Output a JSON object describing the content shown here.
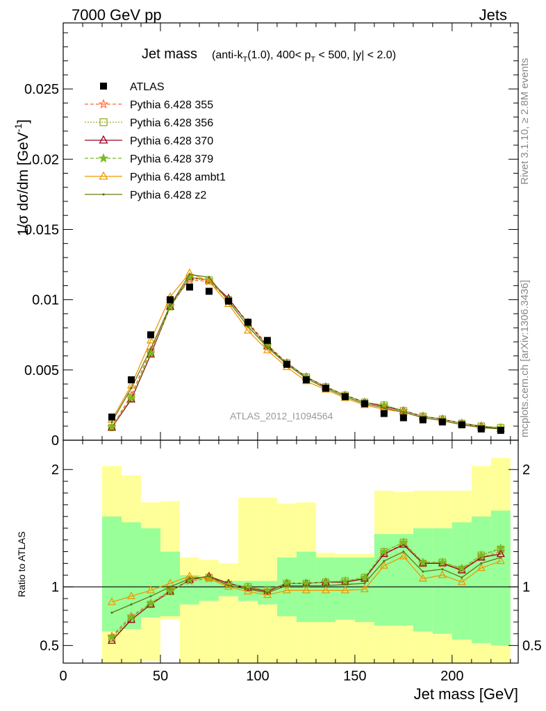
{
  "header": {
    "left": "7000 GeV pp",
    "right": "Jets"
  },
  "side_labels": {
    "rivet": "Rivet 3.1.10, ≥ 2.8M events",
    "mcplots": "mcplots.cern.ch [arXiv:1306.3436]"
  },
  "watermark": "ATLAS_2012_I1094564",
  "chart_data": [
    {
      "type": "line",
      "title_main": "Jet mass",
      "title_sub_pre": "(anti-k",
      "title_sub_idx1": "T",
      "title_sub_mid": "(1.0), 400< p",
      "title_sub_idx2": "T",
      "title_sub_post": " < 500, |y| < 2.0)",
      "ylabel": "1/σ dσ/dm [GeV",
      "ylabel_exp": "-1",
      "ylabel_close": "]",
      "xlim": [
        0,
        234
      ],
      "ylim": [
        0,
        0.0297
      ],
      "y_ticks": [
        0,
        0.005,
        0.01,
        0.015,
        0.02,
        0.025
      ],
      "y_tick_labels": [
        "0",
        "0.005",
        "0.01",
        "0.015",
        "0.02",
        "0.025"
      ],
      "x": [
        25,
        35,
        45,
        55,
        65,
        75,
        85,
        95,
        105,
        115,
        125,
        135,
        145,
        155,
        165,
        175,
        185,
        195,
        205,
        215,
        225
      ],
      "data": {
        "name": "ATLAS",
        "values": [
          0.00165,
          0.0043,
          0.0075,
          0.01,
          0.0109,
          0.0106,
          0.0099,
          0.0084,
          0.0071,
          0.0054,
          0.0043,
          0.0037,
          0.0031,
          0.0026,
          0.0019,
          0.0016,
          0.00145,
          0.0013,
          0.0011,
          0.0008,
          0.0007
        ]
      },
      "series": [
        {
          "name": "Pythia 6.428 355",
          "color": "#ff6633",
          "dash": "5,3",
          "marker": "star",
          "values": [
            0.00095,
            0.0032,
            0.0064,
            0.0096,
            0.0114,
            0.0113,
            0.01,
            0.0084,
            0.0068,
            0.0055,
            0.0045,
            0.0038,
            0.0032,
            0.0027,
            0.0024,
            0.0021,
            0.0017,
            0.0015,
            0.0012,
            0.00095,
            0.0008
          ]
        },
        {
          "name": "Pythia 6.428 356",
          "color": "#99aa22",
          "dash": "2,2",
          "marker": "square-open",
          "values": [
            0.0009,
            0.003,
            0.0062,
            0.0095,
            0.0115,
            0.0114,
            0.01,
            0.0083,
            0.0067,
            0.0055,
            0.0045,
            0.0038,
            0.0032,
            0.0027,
            0.0025,
            0.0021,
            0.0017,
            0.0015,
            0.0012,
            0.001,
            0.0009
          ]
        },
        {
          "name": "Pythia 6.428 370",
          "color": "#990022",
          "dash": "",
          "marker": "triangle-open",
          "values": [
            0.0009,
            0.0029,
            0.0061,
            0.0095,
            0.0116,
            0.0114,
            0.0101,
            0.0083,
            0.0067,
            0.0055,
            0.0045,
            0.0038,
            0.0032,
            0.0027,
            0.0024,
            0.0021,
            0.0017,
            0.0015,
            0.0012,
            0.001,
            0.0008
          ]
        },
        {
          "name": "Pythia 6.428 379",
          "color": "#77bb22",
          "dash": "5,3",
          "marker": "star-filled",
          "values": [
            0.00095,
            0.003,
            0.0062,
            0.0095,
            0.0116,
            0.0114,
            0.01,
            0.0083,
            0.0067,
            0.0055,
            0.0045,
            0.0038,
            0.0032,
            0.0027,
            0.0025,
            0.0021,
            0.0017,
            0.0015,
            0.0012,
            0.001,
            0.0009
          ]
        },
        {
          "name": "Pythia 6.428 ambt1",
          "color": "#ee9900",
          "dash": "",
          "marker": "triangle-open",
          "values": [
            0.00145,
            0.0039,
            0.0071,
            0.0102,
            0.0119,
            0.0113,
            0.0097,
            0.0078,
            0.0064,
            0.0052,
            0.0042,
            0.0036,
            0.003,
            0.0025,
            0.0022,
            0.002,
            0.0016,
            0.0014,
            0.0011,
            0.0009,
            0.0008
          ]
        },
        {
          "name": "Pythia 6.428 z2",
          "color": "#667711",
          "dash": "",
          "marker": "dot",
          "values": [
            0.0013,
            0.0037,
            0.0065,
            0.0096,
            0.0118,
            0.0116,
            0.0099,
            0.0081,
            0.0066,
            0.0054,
            0.0044,
            0.0037,
            0.0031,
            0.0026,
            0.0023,
            0.002,
            0.0016,
            0.0014,
            0.0011,
            0.0009,
            0.0008
          ]
        }
      ]
    },
    {
      "type": "line",
      "ylabel": "Ratio to ATLAS",
      "xlabel": "Jet mass [GeV]",
      "xlim": [
        0,
        234
      ],
      "ylim": [
        0.35,
        2.25
      ],
      "x_ticks": [
        0,
        50,
        100,
        150,
        200
      ],
      "x_tick_labels": [
        "0",
        "50",
        "100",
        "150",
        "200"
      ],
      "y_ticks": [
        0.5,
        1,
        2
      ],
      "y_tick_labels": [
        "0.5",
        "1",
        "2"
      ],
      "bin_edges": [
        20,
        30,
        40,
        50,
        60,
        70,
        80,
        90,
        100,
        110,
        120,
        130,
        140,
        150,
        160,
        170,
        180,
        190,
        200,
        210,
        220,
        230
      ],
      "yellow_band": {
        "color": "#ffff99",
        "upper": [
          2.03,
          1.95,
          1.72,
          1.73,
          1.25,
          1.23,
          1.2,
          1.76,
          1.76,
          1.71,
          1.72,
          1.29,
          1.28,
          1.28,
          1.82,
          1.81,
          1.82,
          1.82,
          1.82,
          2.03,
          2.1
        ],
        "lower": [
          0.35,
          0.35,
          0.37,
          0.72,
          0.35,
          0.35,
          0.35,
          0.35,
          0.35,
          0.35,
          0.35,
          0.35,
          0.35,
          0.35,
          0.35,
          0.35,
          0.35,
          0.35,
          0.35,
          0.35,
          0.35
        ]
      },
      "green_band": {
        "color": "#99ff99",
        "upper": [
          1.6,
          1.55,
          1.5,
          1.3,
          1.1,
          1.07,
          1.05,
          1.05,
          1.05,
          1.25,
          1.3,
          1.25,
          1.25,
          1.25,
          1.45,
          1.45,
          1.5,
          1.5,
          1.55,
          1.6,
          1.65
        ],
        "lower": [
          0.62,
          0.64,
          0.74,
          0.75,
          0.85,
          0.88,
          0.92,
          0.88,
          0.85,
          0.75,
          0.7,
          0.7,
          0.72,
          0.7,
          0.67,
          0.67,
          0.62,
          0.6,
          0.55,
          0.52,
          0.5
        ]
      },
      "x": [
        25,
        35,
        45,
        55,
        65,
        75,
        85,
        95,
        105,
        115,
        125,
        135,
        145,
        155,
        165,
        175,
        185,
        195,
        205,
        215,
        225
      ],
      "reference_line": 1,
      "series": [
        {
          "name": "Pythia 6.428 355",
          "color": "#ff6633",
          "dash": "5,3",
          "marker": "star",
          "values": [
            0.58,
            0.75,
            0.86,
            0.97,
            1.05,
            1.07,
            1.02,
            1.0,
            0.97,
            1.03,
            1.03,
            1.04,
            1.04,
            1.07,
            1.28,
            1.37,
            1.2,
            1.2,
            1.15,
            1.25,
            1.3
          ]
        },
        {
          "name": "Pythia 6.428 356",
          "color": "#99aa22",
          "dash": "2,2",
          "marker": "square-open",
          "values": [
            0.56,
            0.72,
            0.85,
            0.96,
            1.06,
            1.08,
            1.02,
            1.0,
            0.97,
            1.03,
            1.03,
            1.04,
            1.05,
            1.08,
            1.3,
            1.38,
            1.2,
            1.21,
            1.15,
            1.27,
            1.32
          ]
        },
        {
          "name": "Pythia 6.428 370",
          "color": "#990022",
          "dash": "",
          "marker": "triangle-open",
          "values": [
            0.54,
            0.72,
            0.85,
            0.96,
            1.06,
            1.09,
            1.03,
            0.99,
            0.96,
            1.03,
            1.03,
            1.04,
            1.04,
            1.07,
            1.28,
            1.36,
            1.2,
            1.2,
            1.14,
            1.25,
            1.28
          ]
        },
        {
          "name": "Pythia 6.428 379",
          "color": "#77bb22",
          "dash": "5,3",
          "marker": "star-filled",
          "values": [
            0.57,
            0.74,
            0.86,
            0.96,
            1.06,
            1.08,
            1.02,
            1.0,
            0.97,
            1.03,
            1.03,
            1.04,
            1.05,
            1.08,
            1.3,
            1.38,
            1.21,
            1.21,
            1.16,
            1.27,
            1.33
          ]
        },
        {
          "name": "Pythia 6.428 ambt1",
          "color": "#ee9900",
          "dash": "",
          "marker": "triangle-open",
          "values": [
            0.87,
            0.92,
            0.97,
            1.03,
            1.09,
            1.07,
            1.0,
            0.96,
            0.93,
            0.97,
            0.97,
            0.97,
            0.97,
            0.98,
            1.18,
            1.26,
            1.07,
            1.1,
            1.04,
            1.16,
            1.22
          ]
        },
        {
          "name": "Pythia 6.428 z2",
          "color": "#667711",
          "dash": "",
          "marker": "dot",
          "values": [
            0.78,
            0.85,
            0.92,
            1.0,
            1.07,
            1.09,
            1.01,
            0.98,
            0.95,
            1.01,
            1.01,
            1.01,
            1.02,
            1.03,
            1.22,
            1.3,
            1.13,
            1.15,
            1.08,
            1.2,
            1.25
          ]
        }
      ]
    }
  ]
}
